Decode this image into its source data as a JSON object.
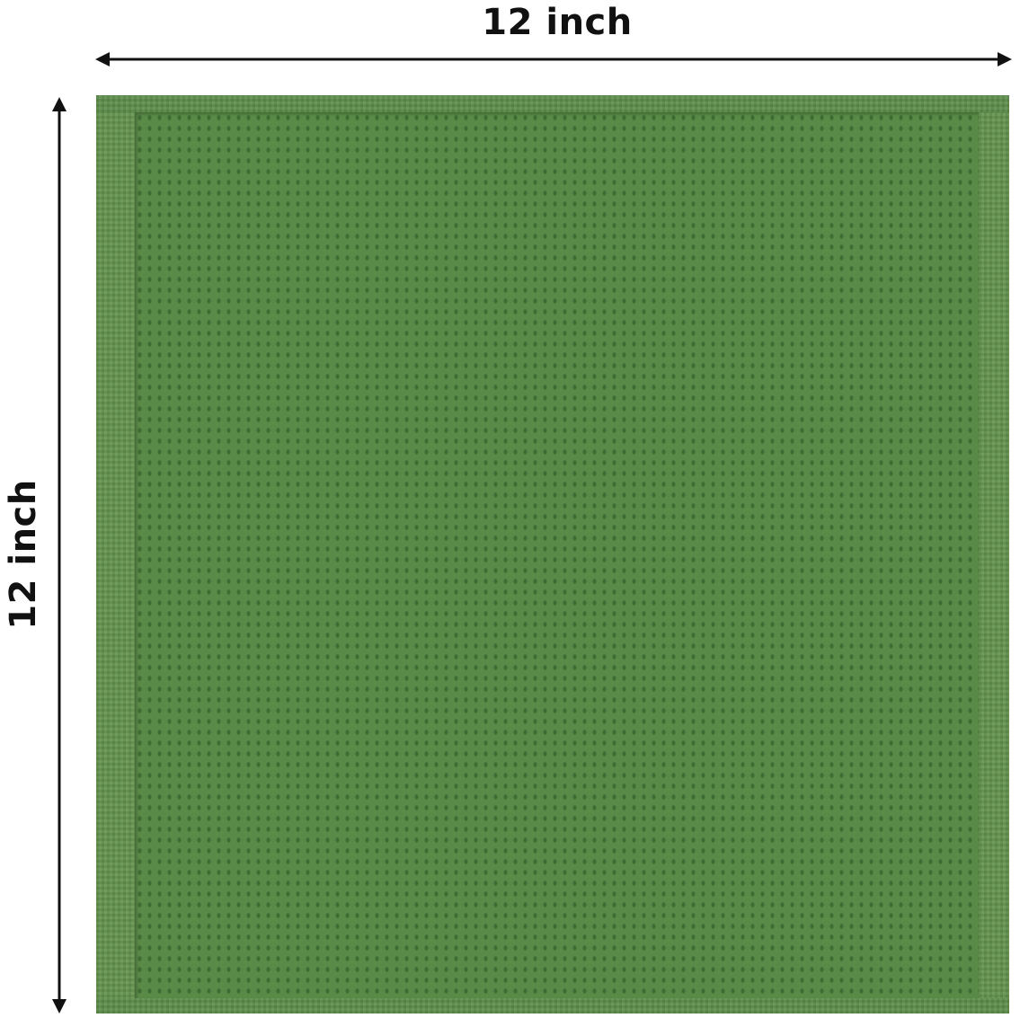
{
  "dimensions": {
    "width_label": "12 inch",
    "height_label": "12 inch"
  },
  "product": {
    "color": "#5c8c4a",
    "texture": "waffle-weave"
  }
}
